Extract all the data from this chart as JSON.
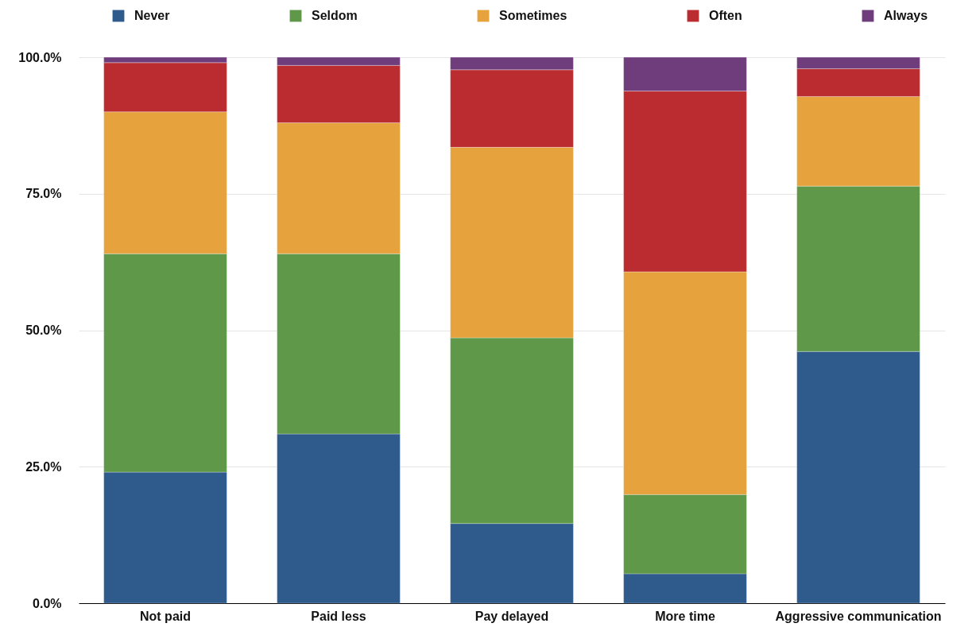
{
  "chart_data": {
    "type": "bar",
    "stacked": true,
    "categories": [
      "Not paid",
      "Paid less",
      "Pay delayed",
      "More time",
      "Aggressive communication"
    ],
    "series": [
      {
        "name": "Never",
        "color": "#2e5a8c",
        "values": [
          24,
          31,
          14.6,
          5.4,
          46.1
        ]
      },
      {
        "name": "Seldom",
        "color": "#5e9848",
        "values": [
          40,
          33,
          34,
          14.5,
          30.3
        ]
      },
      {
        "name": "Sometimes",
        "color": "#e6a23c",
        "values": [
          26,
          24,
          34.9,
          40.8,
          16.4
        ]
      },
      {
        "name": "Often",
        "color": "#bb2c30",
        "values": [
          9,
          10.5,
          14.2,
          33.1,
          5.1
        ]
      },
      {
        "name": "Always",
        "color": "#6f3d7c",
        "values": [
          1,
          1.5,
          2.3,
          6.2,
          2.1
        ]
      }
    ],
    "ylim": [
      0,
      100
    ],
    "yticks": [
      {
        "value": 0,
        "label": "0.0%"
      },
      {
        "value": 25,
        "label": "25.0%"
      },
      {
        "value": 50,
        "label": "50.0%"
      },
      {
        "value": 75,
        "label": "75.0%"
      },
      {
        "value": 100,
        "label": "100.0%"
      }
    ],
    "grid": "y",
    "legend": "top"
  }
}
